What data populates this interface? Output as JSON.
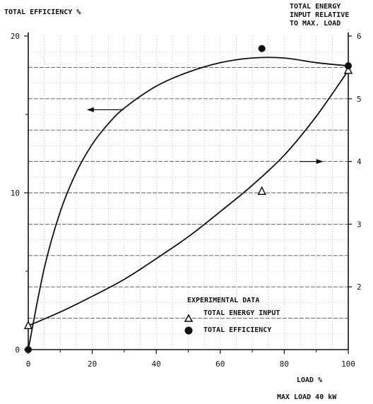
{
  "chart_data": {
    "type": "line",
    "ylabel_left": "TOTAL EFFICIENCY %",
    "ylabel_right": [
      "TOTAL ENERGY",
      "INPUT RELATIVE",
      "TO MAX. LOAD"
    ],
    "xlabel": "LOAD %",
    "note": "MAX LOAD 40 kW",
    "xlim": [
      0,
      100
    ],
    "ylim_left": [
      0,
      20
    ],
    "ylim_right": [
      1,
      6
    ],
    "x_ticks": [
      "0",
      "20",
      "40",
      "60",
      "80",
      "100"
    ],
    "y_left_ticks": [
      "0",
      "10",
      "20"
    ],
    "y_right_ticks": [
      "2",
      "3",
      "4",
      "5",
      "6"
    ],
    "legend_title": "EXPERIMENTAL DATA",
    "series": [
      {
        "name": "TOTAL ENERGY INPUT",
        "axis": "right",
        "marker": "triangle",
        "x": [
          0,
          10,
          20,
          30,
          40,
          50,
          60,
          70,
          80,
          90,
          100
        ],
        "y": [
          1.38,
          1.6,
          1.85,
          2.12,
          2.45,
          2.8,
          3.2,
          3.62,
          4.1,
          4.72,
          5.45
        ],
        "data_points": {
          "x": [
            0,
            73,
            100
          ],
          "y": [
            1.38,
            3.52,
            5.45
          ]
        }
      },
      {
        "name": "TOTAL EFFICIENCY",
        "axis": "left",
        "marker": "circle",
        "x": [
          0,
          5,
          10,
          15,
          20,
          25,
          30,
          40,
          50,
          60,
          70,
          80,
          90,
          100
        ],
        "y": [
          0,
          5.2,
          8.8,
          11.3,
          13.1,
          14.4,
          15.4,
          16.8,
          17.7,
          18.3,
          18.6,
          18.6,
          18.3,
          18.1
        ],
        "data_points": {
          "x": [
            0,
            73,
            100
          ],
          "y": [
            0,
            19.2,
            18.1
          ]
        }
      }
    ],
    "arrows": [
      {
        "points_to": "left",
        "x": 28,
        "y_left": 15.3
      },
      {
        "points_to": "right",
        "x": 90,
        "y_right": 4.0
      }
    ]
  }
}
